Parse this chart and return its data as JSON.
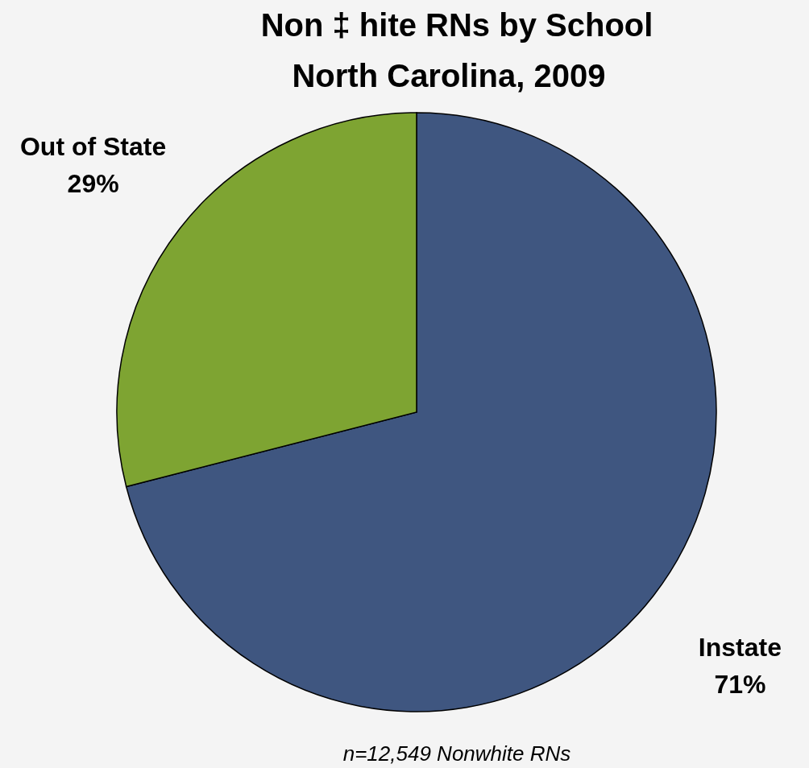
{
  "chart_data": {
    "type": "pie",
    "title": "Non ‡ hite RNs by School",
    "subtitle": "North Carolina, 2009",
    "categories": [
      "Instate",
      "Out of State"
    ],
    "values": [
      71,
      29
    ],
    "colors": [
      "#3f5680",
      "#7ea432"
    ],
    "value_labels": [
      "71%",
      "29%"
    ],
    "annotations": [
      "n=12,549 Nonwhite RNs"
    ]
  }
}
